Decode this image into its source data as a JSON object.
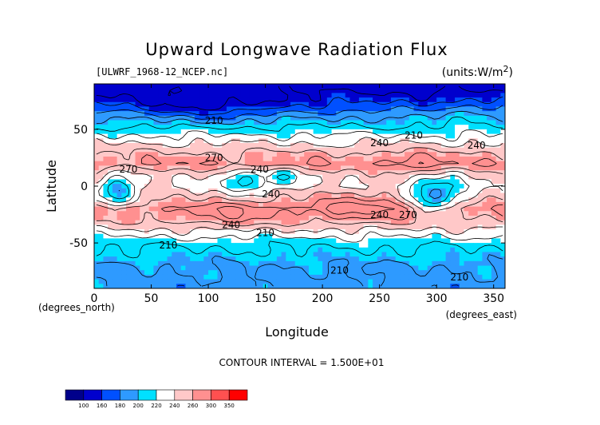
{
  "chart_data": {
    "type": "heatmap",
    "title": "Upward Longwave Radiation Flux",
    "subtitle_file": "[ULWRF_1968-12_NCEP.nc]",
    "units_label": "(units:W/m^2)",
    "xlabel": "Longitude",
    "ylabel": "Latitude",
    "x_unit_label": "(degrees_east)",
    "y_unit_label": "(degrees_north)",
    "xlim": [
      0,
      360
    ],
    "ylim": [
      -90,
      90
    ],
    "x_ticks": [
      0,
      50,
      100,
      150,
      200,
      250,
      300,
      350
    ],
    "y_ticks": [
      -50,
      0,
      50
    ],
    "contour_interval_text": "CONTOUR INTERVAL = 1.500E+01",
    "contour_labels": [
      "210",
      "240",
      "270"
    ],
    "colorbar": {
      "levels": [
        "100",
        "160",
        "180",
        "200",
        "220",
        "240",
        "260",
        "300",
        "350"
      ],
      "colors": [
        "#00008B",
        "#0000CD",
        "#0050FF",
        "#2E9AFF",
        "#00E0FF",
        "#FFFFFF",
        "#FFC8C8",
        "#FF9090",
        "#FF5050",
        "#FF0000"
      ]
    },
    "latitude_profile": [
      {
        "lat": 90,
        "value": 140
      },
      {
        "lat": 75,
        "value": 160
      },
      {
        "lat": 60,
        "value": 195
      },
      {
        "lat": 45,
        "value": 225
      },
      {
        "lat": 30,
        "value": 255
      },
      {
        "lat": 20,
        "value": 268
      },
      {
        "lat": 10,
        "value": 245
      },
      {
        "lat": 0,
        "value": 240
      },
      {
        "lat": -10,
        "value": 250
      },
      {
        "lat": -20,
        "value": 270
      },
      {
        "lat": -30,
        "value": 258
      },
      {
        "lat": -40,
        "value": 235
      },
      {
        "lat": -50,
        "value": 215
      },
      {
        "lat": -60,
        "value": 205
      },
      {
        "lat": -70,
        "value": 195
      },
      {
        "lat": -90,
        "value": 190
      }
    ]
  }
}
